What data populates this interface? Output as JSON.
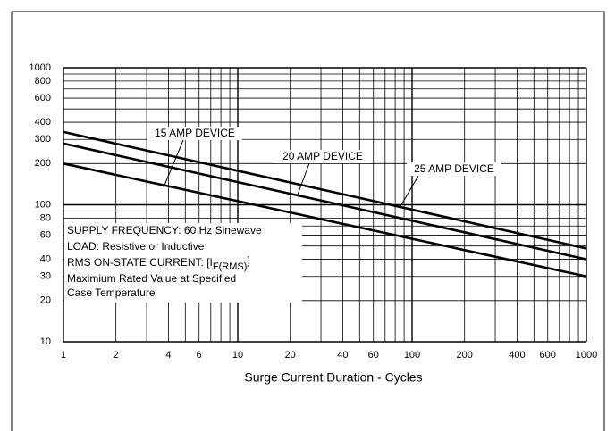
{
  "chart_data": {
    "type": "line",
    "x_label": "Surge Current Duration - Cycles",
    "log_x": true,
    "log_y": true,
    "xlim": [
      1,
      1000
    ],
    "ylim": [
      10,
      1000
    ],
    "xticks": [
      1,
      2,
      4,
      6,
      10,
      20,
      40,
      60,
      100,
      200,
      400,
      600,
      1000
    ],
    "yticks": [
      10,
      20,
      30,
      40,
      60,
      80,
      100,
      200,
      300,
      400,
      600,
      800,
      1000
    ],
    "xgrid": [
      1,
      2,
      3,
      4,
      5,
      6,
      7,
      8,
      9,
      10,
      20,
      30,
      40,
      50,
      60,
      70,
      80,
      90,
      100,
      200,
      300,
      400,
      500,
      600,
      700,
      800,
      900,
      1000
    ],
    "ygrid": [
      10,
      20,
      30,
      40,
      50,
      60,
      70,
      80,
      90,
      100,
      200,
      300,
      400,
      500,
      600,
      700,
      800,
      900,
      1000
    ],
    "x": [
      1,
      1000
    ],
    "series": [
      {
        "name": "15 AMP DEVICE",
        "color": "#000000",
        "values": [
          200,
          30
        ]
      },
      {
        "name": "20 AMP DEVICE",
        "color": "#000000",
        "values": [
          280,
          40
        ]
      },
      {
        "name": "25 AMP DEVICE",
        "color": "#000000",
        "values": [
          340,
          48
        ]
      }
    ],
    "note": {
      "line1": "SUPPLY FREQUENCY: 60 Hz Sinewave",
      "line2": "LOAD: Resistive or Inductive",
      "line3": [
        "RMS ON-STATE CURRENT: [I",
        "F(RMS)",
        "]"
      ],
      "line4": "Maximium Rated Value at Specified",
      "line5": "Case Temperature"
    }
  }
}
